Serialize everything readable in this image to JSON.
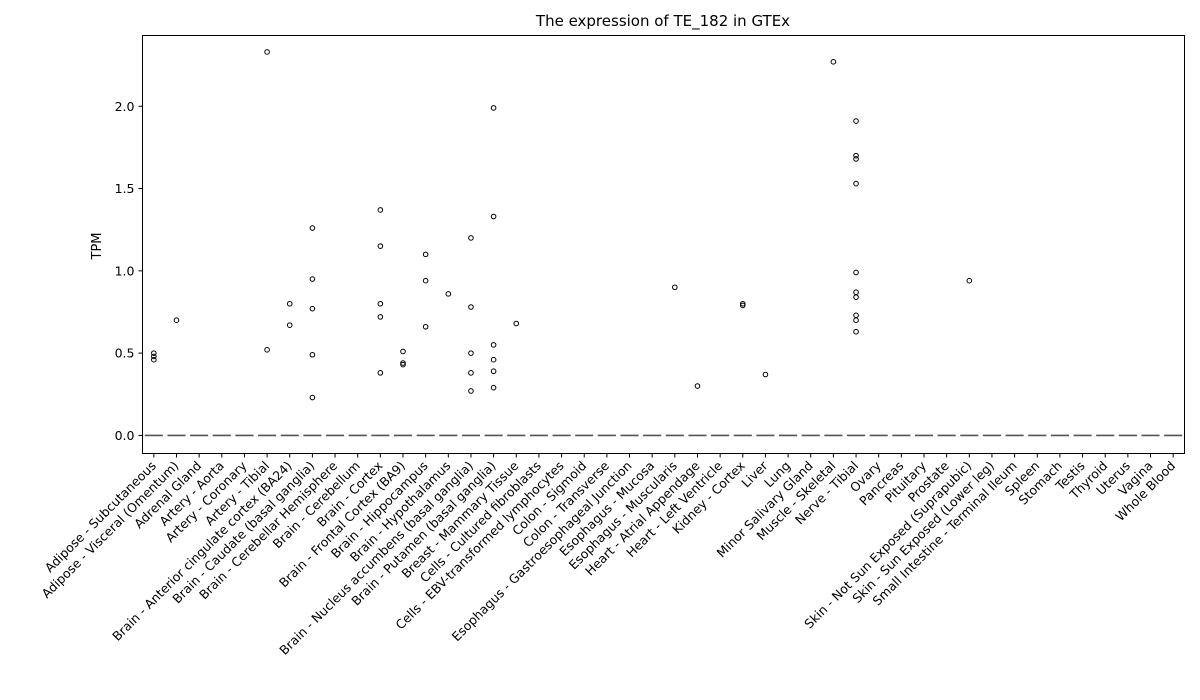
{
  "chart_data": {
    "type": "box",
    "title": "The expression of TE_182 in GTEx",
    "xlabel": "",
    "ylabel": "TPM",
    "ylim": [
      -0.11,
      2.43
    ],
    "yticks": [
      0.0,
      0.5,
      1.0,
      1.5,
      2.0
    ],
    "ytick_labels": [
      "0.0",
      "0.5",
      "1.0",
      "1.5",
      "2.0"
    ],
    "grid": false,
    "legend": "none",
    "median_color": "#555555",
    "categories": [
      "Adipose - Subcutaneous",
      "Adipose - Visceral (Omentum)",
      "Adrenal Gland",
      "Artery - Aorta",
      "Artery - Coronary",
      "Artery - Tibial",
      "Brain - Anterior cingulate cortex (BA24)",
      "Brain - Caudate (basal ganglia)",
      "Brain - Cerebellar Hemisphere",
      "Brain - Cerebellum",
      "Brain - Cortex",
      "Brain - Frontal Cortex (BA9)",
      "Brain - Hippocampus",
      "Brain - Hypothalamus",
      "Brain - Nucleus accumbens (basal ganglia)",
      "Brain - Putamen (basal ganglia)",
      "Breast - Mammary Tissue",
      "Cells - Cultured fibroblasts",
      "Cells - EBV-transformed lymphocytes",
      "Colon - Sigmoid",
      "Colon - Transverse",
      "Esophagus - Gastroesophageal Junction",
      "Esophagus - Mucosa",
      "Esophagus - Muscularis",
      "Heart - Atrial Appendage",
      "Heart - Left Ventricle",
      "Kidney - Cortex",
      "Liver",
      "Lung",
      "Minor Salivary Gland",
      "Muscle - Skeletal",
      "Nerve - Tibial",
      "Ovary",
      "Pancreas",
      "Pituitary",
      "Prostate",
      "Skin - Not Sun Exposed (Suprapubic)",
      "Skin - Sun Exposed (Lower leg)",
      "Small Intestine - Terminal Ileum",
      "Spleen",
      "Stomach",
      "Testis",
      "Thyroid",
      "Uterus",
      "Vagina",
      "Whole Blood"
    ],
    "medians": [
      0,
      0,
      0,
      0,
      0,
      0,
      0,
      0,
      0,
      0,
      0,
      0,
      0,
      0,
      0,
      0,
      0,
      0,
      0,
      0,
      0,
      0,
      0,
      0,
      0,
      0,
      0,
      0,
      0,
      0,
      0,
      0,
      0,
      0,
      0,
      0,
      0,
      0,
      0,
      0,
      0,
      0,
      0,
      0,
      0,
      0
    ],
    "outliers": [
      [
        0.46,
        0.48,
        0.5
      ],
      [
        0.7
      ],
      [],
      [],
      [],
      [
        0.52,
        2.33
      ],
      [
        0.67,
        0.8
      ],
      [
        0.23,
        0.49,
        0.77,
        0.95,
        1.26
      ],
      [],
      [],
      [
        0.38,
        0.72,
        0.8,
        1.15,
        1.37
      ],
      [
        0.43,
        0.44,
        0.51
      ],
      [
        0.66,
        0.94,
        1.1
      ],
      [
        0.86
      ],
      [
        0.27,
        0.38,
        0.5,
        0.78,
        1.2
      ],
      [
        0.29,
        0.39,
        0.46,
        0.55,
        1.33,
        1.99
      ],
      [
        0.68
      ],
      [],
      [],
      [],
      [],
      [],
      [],
      [
        0.9
      ],
      [
        0.3
      ],
      [],
      [
        0.79,
        0.8
      ],
      [
        0.37
      ],
      [],
      [],
      [
        2.27
      ],
      [
        0.63,
        0.7,
        0.73,
        0.84,
        0.87,
        0.99,
        1.53,
        1.68,
        1.7,
        1.91
      ],
      [],
      [],
      [],
      [],
      [
        0.94
      ],
      [],
      [],
      [],
      [],
      [],
      [],
      [],
      [],
      []
    ]
  }
}
